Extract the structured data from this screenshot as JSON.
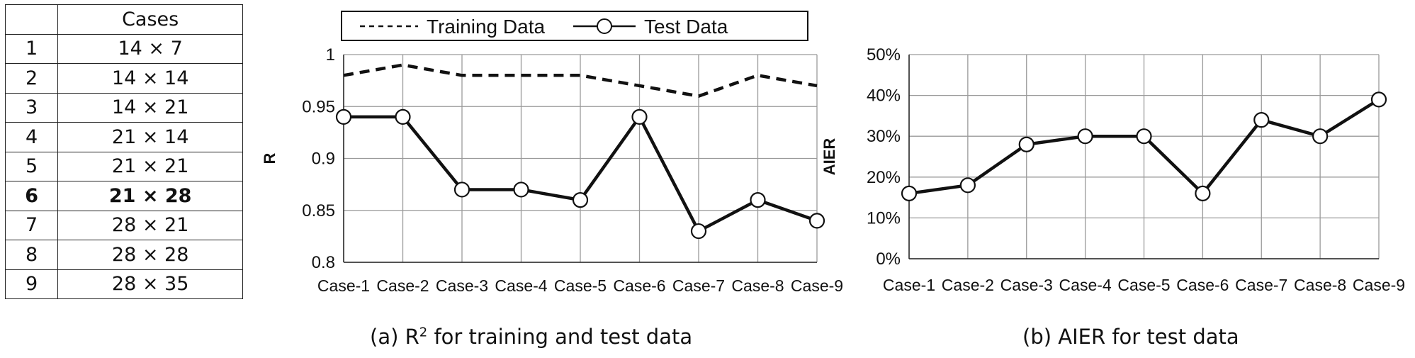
{
  "table": {
    "header": [
      "",
      "Cases"
    ],
    "rows": [
      {
        "id": "1",
        "value": "14 × 7"
      },
      {
        "id": "2",
        "value": "14 × 14"
      },
      {
        "id": "3",
        "value": "14 × 21"
      },
      {
        "id": "4",
        "value": "21 × 14"
      },
      {
        "id": "5",
        "value": "21 × 21"
      },
      {
        "id": "6",
        "value": "21 × 28",
        "highlight": true
      },
      {
        "id": "7",
        "value": "28 × 21"
      },
      {
        "id": "8",
        "value": "28 × 28"
      },
      {
        "id": "9",
        "value": "28 × 35"
      }
    ]
  },
  "chart_data": [
    {
      "type": "line",
      "caption": "(a) R2 for training and test data",
      "ylabel": "R",
      "xlabel": "",
      "categories": [
        "Case-1",
        "Case-2",
        "Case-3",
        "Case-4",
        "Case-5",
        "Case-6",
        "Case-7",
        "Case-8",
        "Case-9"
      ],
      "yticks": [
        "0.8",
        "0.85",
        "0.9",
        "0.95",
        "1"
      ],
      "ylim": [
        0.8,
        1.0
      ],
      "grid": true,
      "legend_position": "top",
      "series": [
        {
          "name": "Training Data",
          "style": "dashed",
          "color": "#111111",
          "values": [
            0.98,
            0.99,
            0.98,
            0.98,
            0.98,
            0.97,
            0.96,
            0.98,
            0.97
          ]
        },
        {
          "name": "Test Data",
          "style": "solid-circle-markers",
          "color": "#111111",
          "values": [
            0.94,
            0.94,
            0.87,
            0.87,
            0.86,
            0.94,
            0.83,
            0.86,
            0.84
          ]
        }
      ]
    },
    {
      "type": "line",
      "caption": "(b) AIER for test data",
      "ylabel": "AIER",
      "xlabel": "",
      "categories": [
        "Case-1",
        "Case-2",
        "Case-3",
        "Case-4",
        "Case-5",
        "Case-6",
        "Case-7",
        "Case-8",
        "Case-9"
      ],
      "yticks": [
        "0%",
        "10%",
        "20%",
        "30%",
        "40%",
        "50%"
      ],
      "ylim": [
        0,
        50
      ],
      "grid": true,
      "series": [
        {
          "style": "solid-circle-markers",
          "color": "#111111",
          "values": [
            16,
            18,
            28,
            30,
            30,
            16,
            34,
            30,
            39
          ]
        }
      ]
    }
  ],
  "captions": {
    "a_prefix": "(a) R",
    "a_sup": "2",
    "a_suffix": " for training and test data",
    "b": "(b) AIER for test data"
  }
}
